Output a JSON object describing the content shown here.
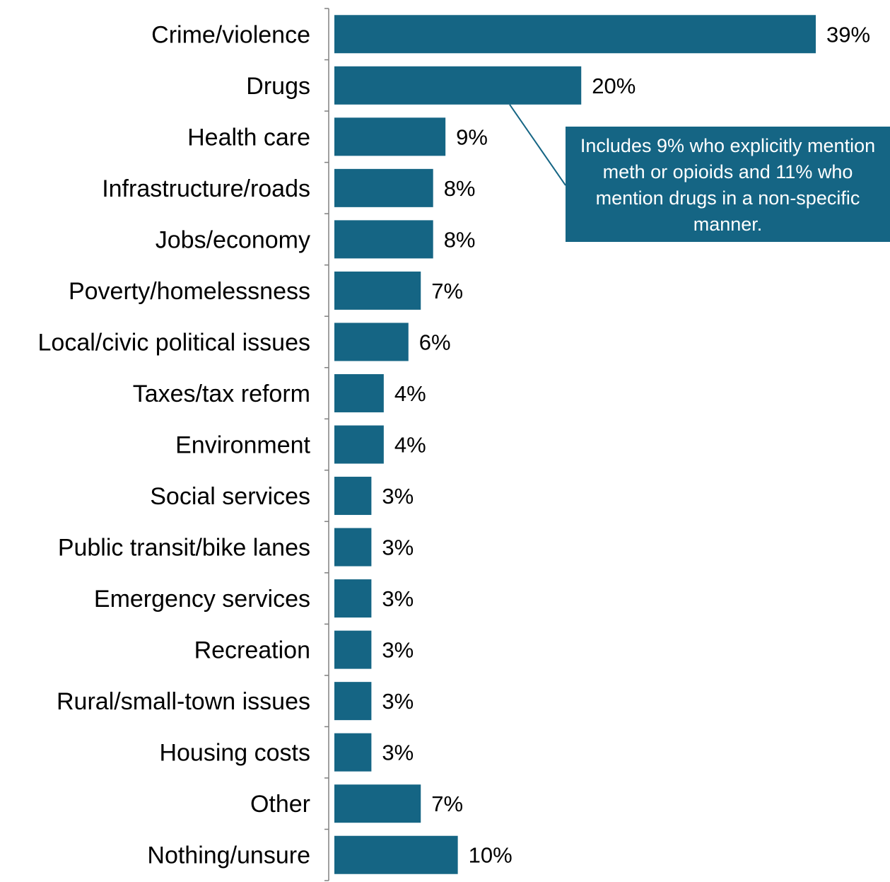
{
  "colors": {
    "bar": "#156584",
    "axis": "#808080",
    "annotation_bg": "#156584",
    "annotation_text": "#ffffff",
    "text": "#000000"
  },
  "chart_data": {
    "type": "bar",
    "orientation": "horizontal",
    "title": "",
    "xlabel": "",
    "ylabel": "",
    "categories": [
      "Crime/violence",
      "Drugs",
      "Health care",
      "Infrastructure/roads",
      "Jobs/economy",
      "Poverty/homelessness",
      "Local/civic political issues",
      "Taxes/tax reform",
      "Environment",
      "Social services",
      "Public transit/bike lanes",
      "Emergency services",
      "Recreation",
      "Rural/small-town issues",
      "Housing costs",
      "Other",
      "Nothing/unsure"
    ],
    "values": [
      39,
      20,
      9,
      8,
      8,
      7,
      6,
      4,
      4,
      3,
      3,
      3,
      3,
      3,
      3,
      7,
      10
    ],
    "value_labels": [
      "39%",
      "20%",
      "9%",
      "8%",
      "8%",
      "7%",
      "6%",
      "4%",
      "4%",
      "3%",
      "3%",
      "3%",
      "3%",
      "3%",
      "3%",
      "7%",
      "10%"
    ],
    "xlim": [
      0,
      39
    ],
    "grid": false,
    "legend": "none",
    "annotations": [
      {
        "target_category": "Drugs",
        "text": "Includes 9% who explicitly mention meth or opioids and 11% who mention drugs in a non-specific manner."
      }
    ]
  }
}
